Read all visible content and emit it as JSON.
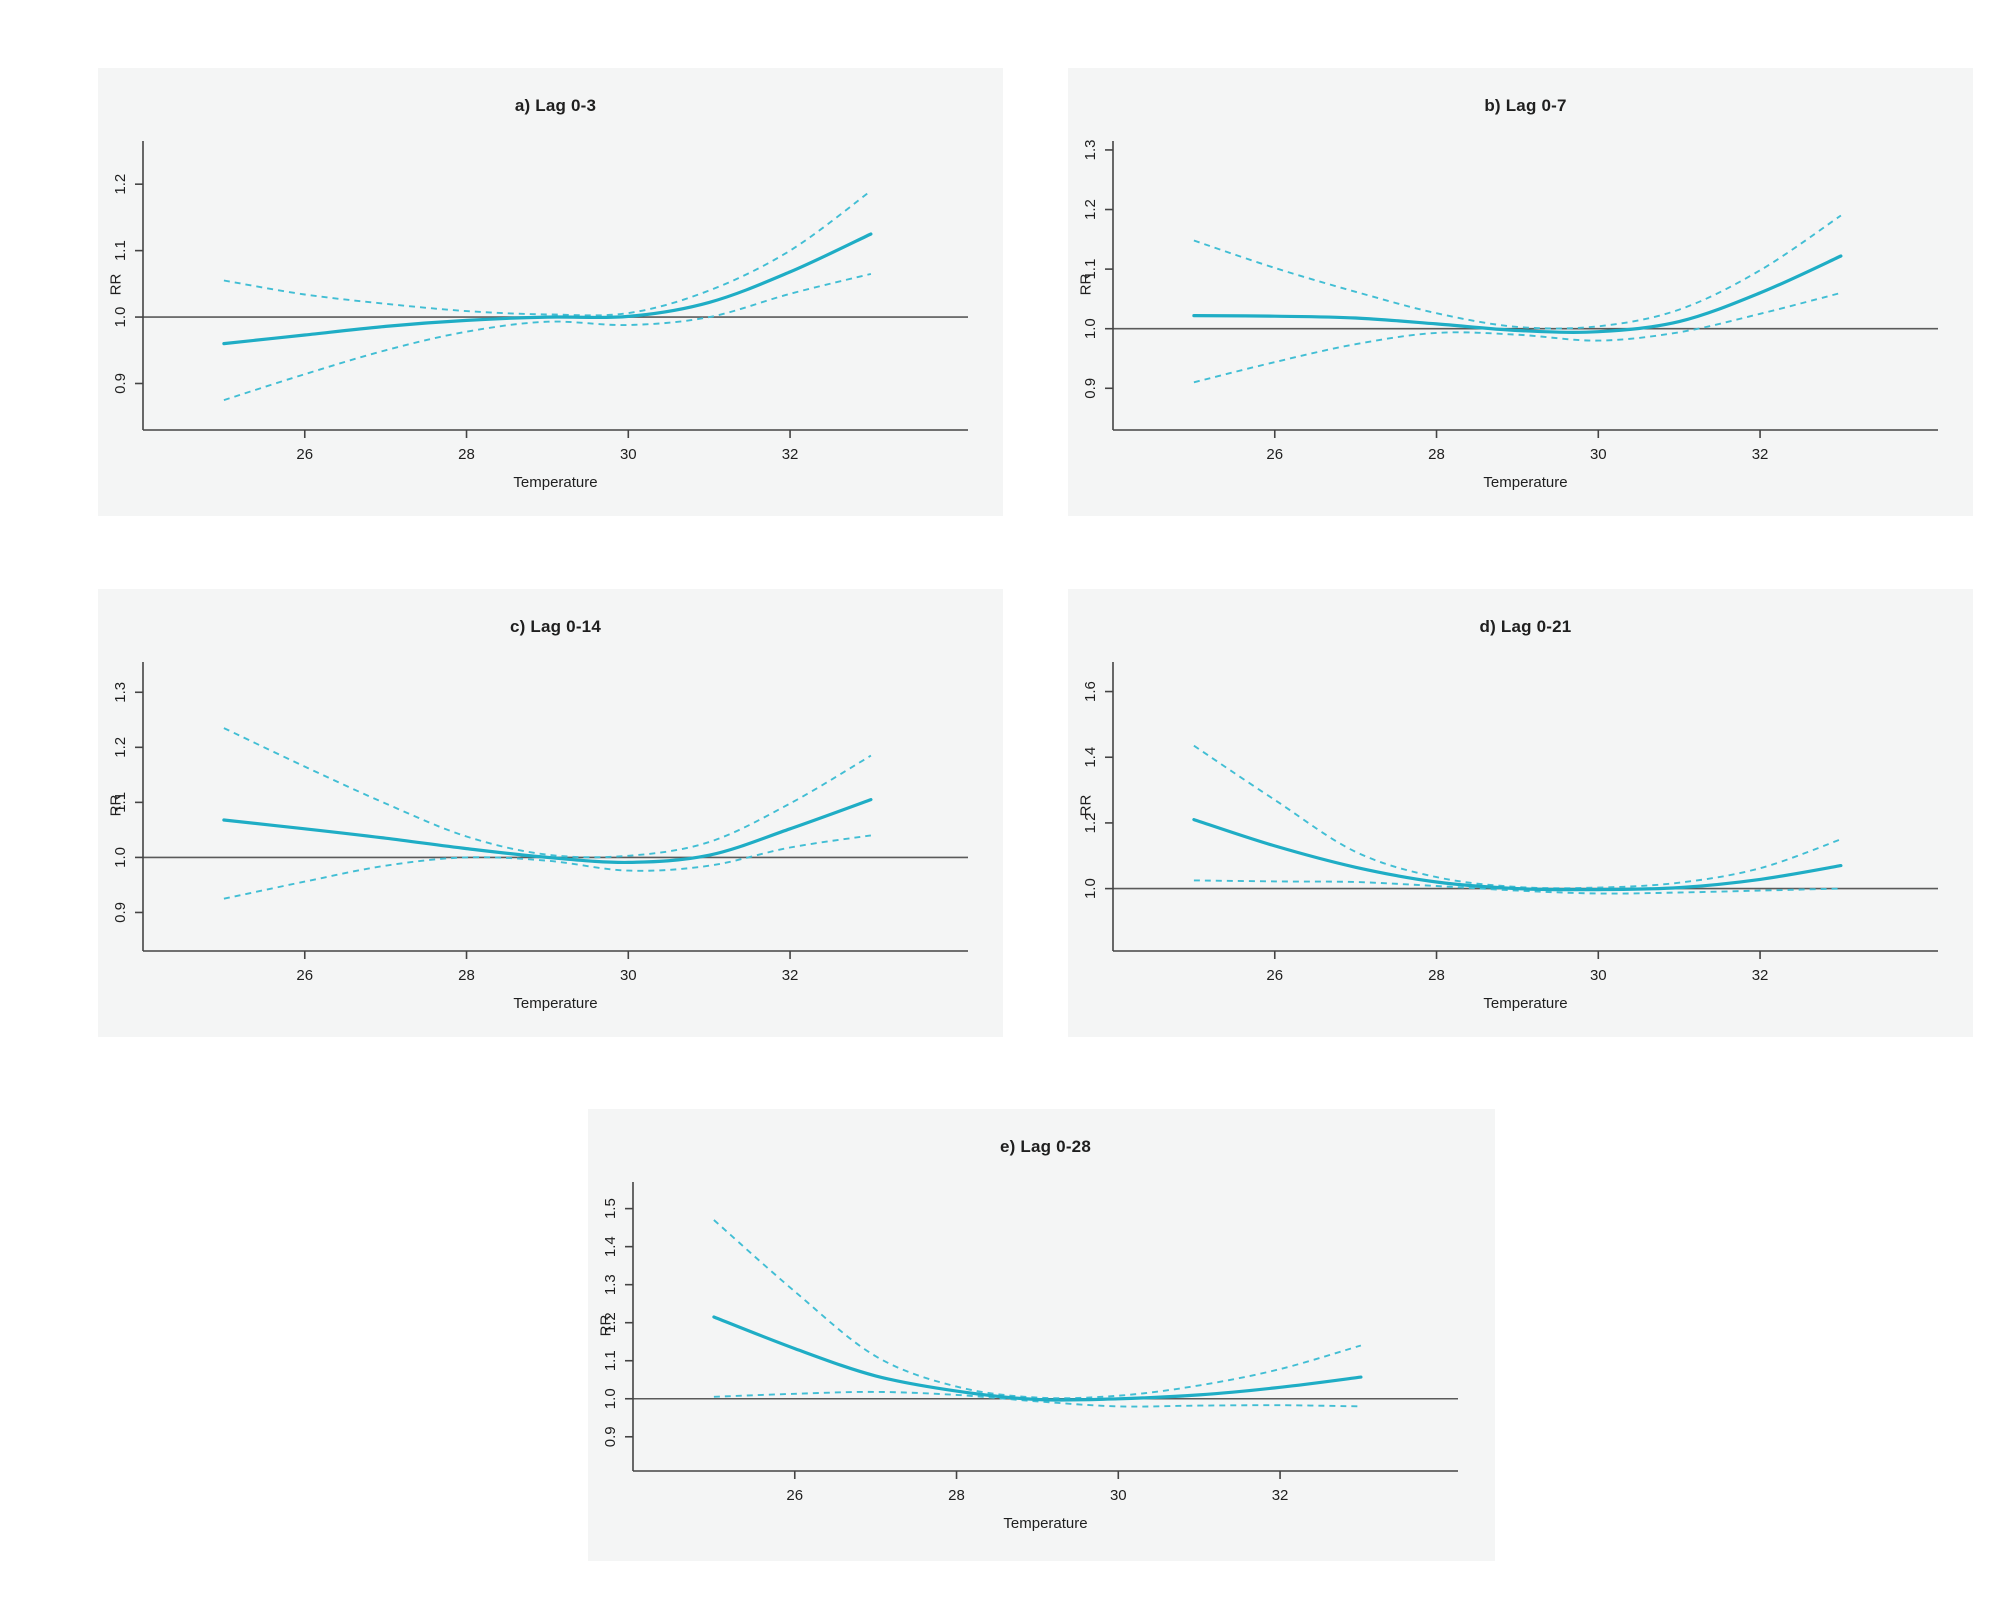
{
  "page": {
    "background": "#ffffff",
    "panel_background": "#f4f5f5"
  },
  "colors": {
    "estimate_line": "#1fadc5",
    "ci_line": "#41bed4",
    "reference_line": "#5a5a5a",
    "axis": "#444444",
    "text": "#1f1f1f"
  },
  "chart_data": [
    {
      "type": "line",
      "title": "a) Lag 0-3",
      "xlabel": "Temperature",
      "ylabel": "RR",
      "x": [
        25,
        26,
        27,
        28,
        29,
        30,
        31,
        32,
        33
      ],
      "series": [
        {
          "name": "estimate",
          "style": "solid",
          "values": [
            0.96,
            0.973,
            0.986,
            0.995,
            1.0,
            1.001,
            1.022,
            1.068,
            1.125
          ]
        },
        {
          "name": "lower-ci",
          "style": "dashed",
          "values": [
            0.875,
            0.914,
            0.95,
            0.978,
            0.993,
            0.988,
            1.0,
            1.035,
            1.065
          ]
        },
        {
          "name": "upper-ci",
          "style": "dashed",
          "values": [
            1.055,
            1.034,
            1.02,
            1.009,
            1.004,
            1.006,
            1.04,
            1.1,
            1.19
          ]
        }
      ],
      "xticks": [
        26,
        28,
        30,
        32
      ],
      "yticks": [
        0.9,
        1.0,
        1.1,
        1.2
      ],
      "xlim": [
        24.0,
        34.2
      ],
      "ylim": [
        0.83,
        1.265
      ],
      "reference_y": 1.0,
      "grid": false,
      "legend": "none"
    },
    {
      "type": "line",
      "title": "b) Lag 0-7",
      "xlabel": "Temperature",
      "ylabel": "RR",
      "x": [
        25,
        26,
        27,
        28,
        29,
        30,
        31,
        32,
        33
      ],
      "series": [
        {
          "name": "estimate",
          "style": "solid",
          "values": [
            1.022,
            1.021,
            1.018,
            1.008,
            0.997,
            0.995,
            1.012,
            1.06,
            1.122
          ]
        },
        {
          "name": "lower-ci",
          "style": "dashed",
          "values": [
            0.91,
            0.944,
            0.974,
            0.993,
            0.99,
            0.98,
            0.994,
            1.025,
            1.06
          ]
        },
        {
          "name": "upper-ci",
          "style": "dashed",
          "values": [
            1.148,
            1.102,
            1.062,
            1.026,
            1.003,
            1.004,
            1.032,
            1.098,
            1.19
          ]
        }
      ],
      "xticks": [
        26,
        28,
        30,
        32
      ],
      "yticks": [
        0.9,
        1.0,
        1.1,
        1.2,
        1.3
      ],
      "xlim": [
        24.0,
        34.2
      ],
      "ylim": [
        0.83,
        1.315
      ],
      "reference_y": 1.0,
      "grid": false,
      "legend": "none"
    },
    {
      "type": "line",
      "title": "c) Lag 0-14",
      "xlabel": "Temperature",
      "ylabel": "RR",
      "x": [
        25,
        26,
        27,
        28,
        29,
        30,
        31,
        32,
        33
      ],
      "series": [
        {
          "name": "estimate",
          "style": "solid",
          "values": [
            1.068,
            1.052,
            1.035,
            1.016,
            1.0,
            0.991,
            1.004,
            1.052,
            1.105
          ]
        },
        {
          "name": "lower-ci",
          "style": "dashed",
          "values": [
            0.925,
            0.956,
            0.985,
            1.0,
            0.994,
            0.976,
            0.985,
            1.018,
            1.04
          ]
        },
        {
          "name": "upper-ci",
          "style": "dashed",
          "values": [
            1.235,
            1.165,
            1.098,
            1.038,
            1.005,
            1.003,
            1.028,
            1.098,
            1.185
          ]
        }
      ],
      "xticks": [
        26,
        28,
        30,
        32
      ],
      "yticks": [
        0.9,
        1.0,
        1.1,
        1.2,
        1.3
      ],
      "xlim": [
        24.0,
        34.2
      ],
      "ylim": [
        0.83,
        1.355
      ],
      "reference_y": 1.0,
      "grid": false,
      "legend": "none"
    },
    {
      "type": "line",
      "title": "d) Lag 0-21",
      "xlabel": "Temperature",
      "ylabel": "RR",
      "x": [
        25,
        26,
        27,
        28,
        29,
        30,
        31,
        32,
        33
      ],
      "series": [
        {
          "name": "estimate",
          "style": "solid",
          "values": [
            1.21,
            1.13,
            1.065,
            1.02,
            1.0,
            0.997,
            1.003,
            1.028,
            1.07
          ]
        },
        {
          "name": "lower-ci",
          "style": "dashed",
          "values": [
            1.025,
            1.022,
            1.02,
            1.008,
            0.994,
            0.985,
            0.988,
            0.994,
            1.0
          ]
        },
        {
          "name": "upper-ci",
          "style": "dashed",
          "values": [
            1.435,
            1.27,
            1.112,
            1.035,
            1.005,
            1.003,
            1.018,
            1.062,
            1.15
          ]
        }
      ],
      "xticks": [
        26,
        28,
        30,
        32
      ],
      "yticks": [
        1.0,
        1.2,
        1.4,
        1.6
      ],
      "xlim": [
        24.0,
        34.2
      ],
      "ylim": [
        0.81,
        1.69
      ],
      "reference_y": 1.0,
      "grid": false,
      "legend": "none"
    },
    {
      "type": "line",
      "title": "e) Lag 0-28",
      "xlabel": "Temperature",
      "ylabel": "RR",
      "x": [
        25,
        26,
        27,
        28,
        29,
        30,
        31,
        32,
        33
      ],
      "series": [
        {
          "name": "estimate",
          "style": "solid",
          "values": [
            1.215,
            1.132,
            1.06,
            1.02,
            0.998,
            1.0,
            1.01,
            1.03,
            1.057
          ]
        },
        {
          "name": "lower-ci",
          "style": "dashed",
          "values": [
            1.005,
            1.013,
            1.018,
            1.01,
            0.993,
            0.98,
            0.982,
            0.983,
            0.98
          ]
        },
        {
          "name": "upper-ci",
          "style": "dashed",
          "values": [
            1.47,
            1.282,
            1.112,
            1.032,
            1.003,
            1.008,
            1.035,
            1.078,
            1.14
          ]
        }
      ],
      "xticks": [
        26,
        28,
        30,
        32
      ],
      "yticks": [
        0.9,
        1.0,
        1.1,
        1.2,
        1.3,
        1.4,
        1.5
      ],
      "xlim": [
        24.0,
        34.2
      ],
      "ylim": [
        0.81,
        1.57
      ],
      "reference_y": 1.0,
      "grid": false,
      "legend": "none"
    }
  ]
}
